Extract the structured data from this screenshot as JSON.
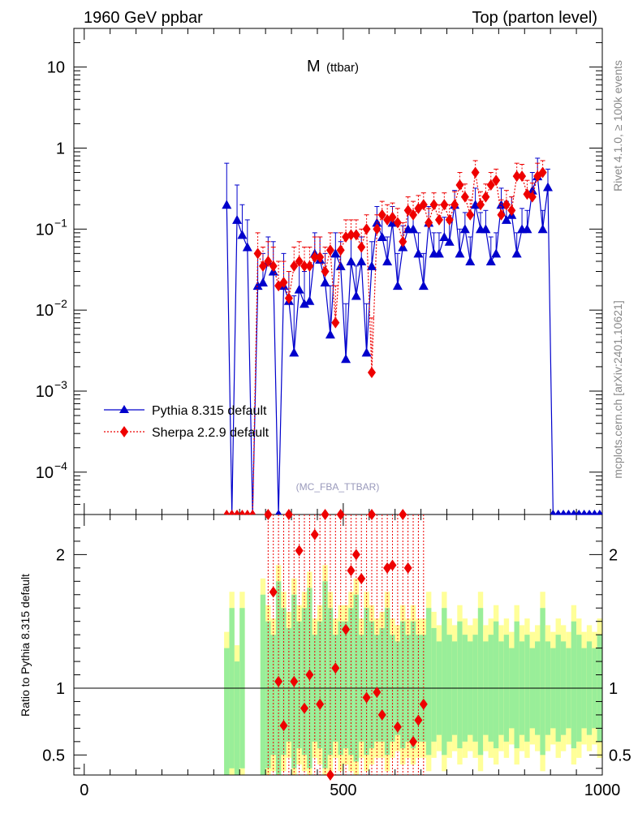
{
  "header": {
    "beam": "1960 GeV ppbar",
    "process": "Top (parton level)"
  },
  "plot_title": {
    "main": "M",
    "sub": "(ttbar)"
  },
  "watermark": "(MC_FBA_TTBAR)",
  "side_label_rivet": "Rivet 4.1.0, ≥ 100k events",
  "side_label_mcplots": "mcplots.cern.ch [arXiv:2401.10621]",
  "ratio_ylabel": "Ratio to Pythia 8.315 default",
  "colors": {
    "pythia": "#0000cc",
    "sherpa": "#ee0000",
    "band_green": "#99ee99",
    "band_yellow": "#ffff99"
  },
  "chart_data": {
    "type": "line",
    "xlim": [
      -20,
      1000
    ],
    "main_ylim_log": [
      3e-05,
      30
    ],
    "ratio_ylim": [
      0.35,
      2.3
    ],
    "x_ticks": [
      0,
      500,
      1000
    ],
    "x_tick_labels": [
      "0",
      "500",
      "1000"
    ],
    "main_y_ticks": [
      {
        "v": 10,
        "label": "10"
      },
      {
        "v": 1,
        "label": "1"
      },
      {
        "v": 0.1,
        "label": "10",
        "exp": "−1"
      },
      {
        "v": 0.01,
        "label": "10",
        "exp": "−2"
      },
      {
        "v": 0.001,
        "label": "10",
        "exp": "−3"
      },
      {
        "v": 0.0001,
        "label": "10",
        "exp": "−4"
      }
    ],
    "ratio_y_ticks": [
      {
        "v": 2,
        "label": "2"
      },
      {
        "v": 1,
        "label": "1"
      },
      {
        "v": 0.5,
        "label": "0.5"
      }
    ],
    "legend": [
      {
        "name": "Pythia 8.315 default",
        "marker": "triangle",
        "style": "solid"
      },
      {
        "name": "Sherpa 2.2.9 default",
        "marker": "diamond",
        "style": "dotted"
      }
    ],
    "series": [
      {
        "name": "Pythia 8.315 default",
        "points": [
          [
            275,
            0.2,
            0.65
          ],
          [
            285,
            0,
            0
          ],
          [
            295,
            0.13,
            0.35
          ],
          [
            305,
            0.085,
            0.2
          ],
          [
            315,
            0.06,
            0.13
          ],
          [
            325,
            0,
            0
          ],
          [
            335,
            0.02,
            0.05
          ],
          [
            345,
            0.022,
            0.05
          ],
          [
            355,
            0.04,
            0.08
          ],
          [
            365,
            0.03,
            0.07
          ],
          [
            375,
            0,
            0
          ],
          [
            385,
            0.02,
            0.05
          ],
          [
            395,
            0.013,
            0.03
          ],
          [
            405,
            0.003,
            0.015
          ],
          [
            415,
            0.018,
            0.04
          ],
          [
            425,
            0.012,
            0.03
          ],
          [
            435,
            0.013,
            0.035
          ],
          [
            445,
            0.05,
            0.09
          ],
          [
            455,
            0.042,
            0.08
          ],
          [
            465,
            0.022,
            0.05
          ],
          [
            475,
            0.005,
            0.02
          ],
          [
            485,
            0.05,
            0.09
          ],
          [
            495,
            0.035,
            0.07
          ],
          [
            505,
            0.0025,
            0.012
          ],
          [
            515,
            0.04,
            0.08
          ],
          [
            525,
            0.015,
            0.035
          ],
          [
            535,
            0.04,
            0.08
          ],
          [
            545,
            0.003,
            0.012
          ],
          [
            555,
            0.035,
            0.07
          ],
          [
            565,
            0.12,
            0.19
          ],
          [
            575,
            0.08,
            0.14
          ],
          [
            585,
            0.04,
            0.08
          ],
          [
            595,
            0.12,
            0.19
          ],
          [
            605,
            0.02,
            0.05
          ],
          [
            615,
            0.06,
            0.11
          ],
          [
            625,
            0.1,
            0.16
          ],
          [
            635,
            0.1,
            0.16
          ],
          [
            645,
            0.05,
            0.09
          ],
          [
            655,
            0.02,
            0.05
          ],
          [
            665,
            0.12,
            0.19
          ],
          [
            675,
            0.05,
            0.09
          ],
          [
            685,
            0.05,
            0.09
          ],
          [
            695,
            0.08,
            0.14
          ],
          [
            705,
            0.07,
            0.12
          ],
          [
            715,
            0.2,
            0.3
          ],
          [
            725,
            0.05,
            0.1
          ],
          [
            735,
            0.1,
            0.16
          ],
          [
            745,
            0.04,
            0.08
          ],
          [
            755,
            0.2,
            0.32
          ],
          [
            765,
            0.1,
            0.16
          ],
          [
            775,
            0.1,
            0.17
          ],
          [
            785,
            0.04,
            0.08
          ],
          [
            795,
            0.05,
            0.09
          ],
          [
            805,
            0.2,
            0.32
          ],
          [
            815,
            0.13,
            0.22
          ],
          [
            825,
            0.15,
            0.25
          ],
          [
            835,
            0.05,
            0.09
          ],
          [
            845,
            0.1,
            0.18
          ],
          [
            855,
            0.1,
            0.17
          ],
          [
            865,
            0.3,
            0.5
          ],
          [
            875,
            0.45,
            0.75
          ],
          [
            885,
            0.1,
            0.17
          ],
          [
            895,
            0.33,
            0.55
          ],
          [
            905,
            0,
            0
          ],
          [
            915,
            0,
            0
          ],
          [
            925,
            0,
            0
          ],
          [
            935,
            0,
            0
          ],
          [
            945,
            0,
            0
          ],
          [
            955,
            0,
            0
          ],
          [
            965,
            0,
            0
          ],
          [
            975,
            0,
            0
          ],
          [
            985,
            0,
            0
          ],
          [
            995,
            0,
            0
          ]
        ]
      },
      {
        "name": "Sherpa 2.2.9 default",
        "points": [
          [
            275,
            0,
            0
          ],
          [
            285,
            0,
            0
          ],
          [
            295,
            0,
            0
          ],
          [
            305,
            0,
            0
          ],
          [
            315,
            0,
            0
          ],
          [
            325,
            0,
            0
          ],
          [
            335,
            0.05,
            0.09
          ],
          [
            345,
            0.035,
            0.06
          ],
          [
            355,
            0.04,
            0.07
          ],
          [
            365,
            0.035,
            0.06
          ],
          [
            375,
            0.02,
            0.04
          ],
          [
            385,
            0.022,
            0.04
          ],
          [
            395,
            0.014,
            0.03
          ],
          [
            405,
            0.035,
            0.06
          ],
          [
            415,
            0.04,
            0.07
          ],
          [
            425,
            0.035,
            0.06
          ],
          [
            435,
            0.035,
            0.06
          ],
          [
            445,
            0.045,
            0.08
          ],
          [
            455,
            0.045,
            0.08
          ],
          [
            465,
            0.03,
            0.06
          ],
          [
            475,
            0.055,
            0.09
          ],
          [
            485,
            0.007,
            0.02
          ],
          [
            495,
            0.055,
            0.09
          ],
          [
            505,
            0.08,
            0.13
          ],
          [
            515,
            0.085,
            0.13
          ],
          [
            525,
            0.085,
            0.13
          ],
          [
            535,
            0.06,
            0.1
          ],
          [
            545,
            0.1,
            0.15
          ],
          [
            555,
            0.0017,
            0.008
          ],
          [
            565,
            0.1,
            0.15
          ],
          [
            575,
            0.15,
            0.22
          ],
          [
            585,
            0.13,
            0.2
          ],
          [
            595,
            0.14,
            0.21
          ],
          [
            605,
            0.12,
            0.18
          ],
          [
            615,
            0.07,
            0.12
          ],
          [
            625,
            0.17,
            0.25
          ],
          [
            635,
            0.15,
            0.22
          ],
          [
            645,
            0.18,
            0.26
          ],
          [
            655,
            0.2,
            0.28
          ],
          [
            665,
            0.12,
            0.18
          ],
          [
            675,
            0.2,
            0.28
          ],
          [
            685,
            0.13,
            0.2
          ],
          [
            695,
            0.2,
            0.28
          ],
          [
            705,
            0.13,
            0.2
          ],
          [
            715,
            0.2,
            0.29
          ],
          [
            725,
            0.35,
            0.5
          ],
          [
            735,
            0.25,
            0.36
          ],
          [
            745,
            0.15,
            0.23
          ],
          [
            755,
            0.5,
            0.7
          ],
          [
            765,
            0.2,
            0.29
          ],
          [
            775,
            0.25,
            0.36
          ],
          [
            785,
            0.35,
            0.5
          ],
          [
            795,
            0.4,
            0.55
          ],
          [
            805,
            0.15,
            0.23
          ],
          [
            815,
            0.2,
            0.3
          ],
          [
            825,
            0.17,
            0.25
          ],
          [
            835,
            0.45,
            0.65
          ],
          [
            845,
            0.45,
            0.63
          ],
          [
            855,
            0.27,
            0.4
          ],
          [
            865,
            0.25,
            0.37
          ],
          [
            875,
            0.45,
            0.65
          ],
          [
            885,
            0.5,
            0.7
          ]
        ]
      }
    ],
    "ratio_points": [
      [
        355,
        2.35
      ],
      [
        365,
        1.72
      ],
      [
        375,
        1.05
      ],
      [
        385,
        0.72
      ],
      [
        395,
        2.4
      ],
      [
        405,
        1.05
      ],
      [
        415,
        2.03
      ],
      [
        425,
        0.85
      ],
      [
        435,
        1.1
      ],
      [
        445,
        2.15
      ],
      [
        455,
        0.88
      ],
      [
        465,
        2.5
      ],
      [
        475,
        0.35
      ],
      [
        485,
        1.15
      ],
      [
        495,
        2.35
      ],
      [
        505,
        1.44
      ],
      [
        515,
        1.88
      ],
      [
        525,
        2.0
      ],
      [
        535,
        1.82
      ],
      [
        545,
        0.93
      ],
      [
        555,
        2.5
      ],
      [
        565,
        0.97
      ],
      [
        575,
        0.8
      ],
      [
        585,
        1.9
      ],
      [
        595,
        1.92
      ],
      [
        605,
        0.71
      ],
      [
        615,
        2.5
      ],
      [
        625,
        1.9
      ],
      [
        635,
        0.6
      ],
      [
        645,
        0.76
      ],
      [
        655,
        0.88
      ]
    ],
    "bands": [
      [
        270,
        0.3,
        1.3
      ],
      [
        280,
        0.4,
        1.6
      ],
      [
        290,
        0.3,
        1.2
      ],
      [
        300,
        0.4,
        1.6
      ],
      [
        340,
        0.35,
        1.7
      ],
      [
        350,
        0.4,
        1.5
      ],
      [
        360,
        0.5,
        1.4
      ],
      [
        370,
        0.3,
        1.8
      ],
      [
        380,
        0.5,
        1.6
      ],
      [
        390,
        0.6,
        1.45
      ],
      [
        400,
        0.4,
        1.7
      ],
      [
        410,
        0.55,
        1.5
      ],
      [
        420,
        0.5,
        1.6
      ],
      [
        430,
        0.4,
        1.75
      ],
      [
        440,
        0.6,
        1.4
      ],
      [
        450,
        0.55,
        1.5
      ],
      [
        460,
        0.4,
        1.8
      ],
      [
        470,
        0.5,
        1.6
      ],
      [
        480,
        0.6,
        1.4
      ],
      [
        490,
        0.5,
        1.5
      ],
      [
        500,
        0.55,
        1.5
      ],
      [
        510,
        0.5,
        1.6
      ],
      [
        520,
        0.45,
        1.7
      ],
      [
        530,
        0.6,
        1.4
      ],
      [
        540,
        0.5,
        1.6
      ],
      [
        550,
        0.55,
        1.5
      ],
      [
        560,
        0.6,
        1.4
      ],
      [
        570,
        0.6,
        1.45
      ],
      [
        580,
        0.5,
        1.6
      ],
      [
        590,
        0.6,
        1.4
      ],
      [
        600,
        0.65,
        1.35
      ],
      [
        610,
        0.55,
        1.5
      ],
      [
        620,
        0.6,
        1.4
      ],
      [
        630,
        0.55,
        1.5
      ],
      [
        640,
        0.6,
        1.4
      ],
      [
        650,
        0.6,
        1.4
      ],
      [
        660,
        0.5,
        1.6
      ],
      [
        670,
        0.6,
        1.45
      ],
      [
        680,
        0.65,
        1.35
      ],
      [
        690,
        0.5,
        1.6
      ],
      [
        700,
        0.6,
        1.4
      ],
      [
        710,
        0.65,
        1.35
      ],
      [
        720,
        0.55,
        1.5
      ],
      [
        730,
        0.6,
        1.4
      ],
      [
        740,
        0.65,
        1.35
      ],
      [
        750,
        0.6,
        1.4
      ],
      [
        760,
        0.5,
        1.6
      ],
      [
        770,
        0.65,
        1.35
      ],
      [
        780,
        0.6,
        1.4
      ],
      [
        790,
        0.55,
        1.5
      ],
      [
        800,
        0.65,
        1.35
      ],
      [
        810,
        0.6,
        1.4
      ],
      [
        820,
        0.7,
        1.3
      ],
      [
        830,
        0.55,
        1.5
      ],
      [
        840,
        0.65,
        1.35
      ],
      [
        850,
        0.6,
        1.4
      ],
      [
        860,
        0.7,
        1.3
      ],
      [
        870,
        0.65,
        1.35
      ],
      [
        880,
        0.5,
        1.6
      ],
      [
        890,
        0.65,
        1.35
      ],
      [
        900,
        0.7,
        1.3
      ],
      [
        910,
        0.6,
        1.4
      ],
      [
        920,
        0.65,
        1.35
      ],
      [
        930,
        0.7,
        1.3
      ],
      [
        940,
        0.55,
        1.5
      ],
      [
        950,
        0.6,
        1.4
      ],
      [
        960,
        0.7,
        1.3
      ],
      [
        970,
        0.65,
        1.35
      ],
      [
        980,
        0.7,
        1.3
      ],
      [
        990,
        0.6,
        1.4
      ]
    ]
  }
}
